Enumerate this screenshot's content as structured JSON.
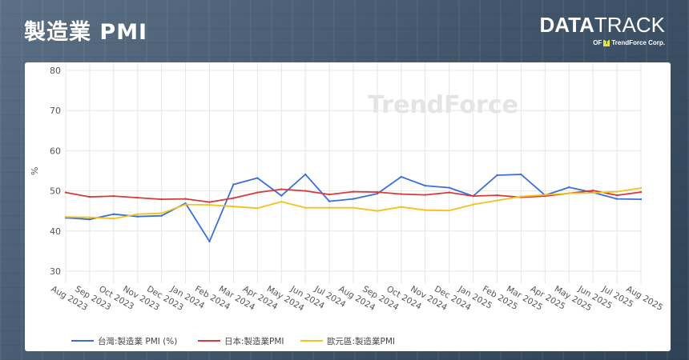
{
  "header": {
    "title": "製造業 PMI",
    "brand_name_bold": "DATA",
    "brand_name_thin": "TRACK",
    "brand_sub_prefix": "OF",
    "brand_sub_company": "TrendForce Corp."
  },
  "watermark": "TrendForce",
  "colors": {
    "taiwan": "#3a6fd8",
    "japan": "#d8393a",
    "eurozone": "#f3c21c",
    "grid": "#e6e6e6"
  },
  "chart_data": {
    "type": "line",
    "title": "",
    "xlabel": "",
    "ylabel": "%",
    "ylim": [
      27,
      82
    ],
    "yticks": [
      30,
      40,
      50,
      60,
      70,
      80
    ],
    "grid": true,
    "legend_position": "bottom",
    "categories": [
      "Aug 2023",
      "Sep 2023",
      "Oct 2023",
      "Nov 2023",
      "Dec 2023",
      "Jan 2024",
      "Feb 2024",
      "Mar 2024",
      "Apr 2024",
      "May 2024",
      "Jun 2024",
      "Jul 2024",
      "Aug 2024",
      "Sep 2024",
      "Oct 2024",
      "Nov 2024",
      "Dec 2024",
      "Jan 2025",
      "Feb 2025",
      "Mar 2025",
      "Apr 2025",
      "May 2025",
      "Jun 2025",
      "Jul 2025",
      "Aug 2025"
    ],
    "series": [
      {
        "name": "台灣:製造業 PMI (%)",
        "key": "taiwan",
        "values": [
          43.3,
          42.9,
          44.2,
          43.6,
          43.8,
          46.9,
          37.4,
          51.6,
          53.2,
          48.8,
          54.1,
          47.4,
          48.0,
          49.3,
          53.5,
          51.3,
          50.8,
          48.7,
          53.9,
          54.1,
          48.9,
          50.9,
          49.6,
          48.0,
          47.9
        ]
      },
      {
        "name": "日本:製造業PMI",
        "key": "japan",
        "values": [
          49.6,
          48.5,
          48.7,
          48.3,
          47.9,
          48.0,
          47.2,
          48.2,
          49.6,
          50.4,
          50.0,
          49.1,
          49.8,
          49.7,
          49.2,
          49.0,
          49.6,
          48.7,
          48.9,
          48.4,
          48.7,
          49.4,
          50.1,
          48.9,
          49.7
        ]
      },
      {
        "name": "歐元區:製造業PMI",
        "key": "eurozone",
        "values": [
          43.5,
          43.4,
          43.1,
          44.2,
          44.4,
          46.6,
          46.5,
          46.1,
          45.7,
          47.3,
          45.8,
          45.8,
          45.8,
          45.0,
          46.0,
          45.2,
          45.1,
          46.6,
          47.6,
          48.6,
          49.0,
          49.4,
          49.5,
          49.8,
          50.7
        ]
      }
    ]
  }
}
